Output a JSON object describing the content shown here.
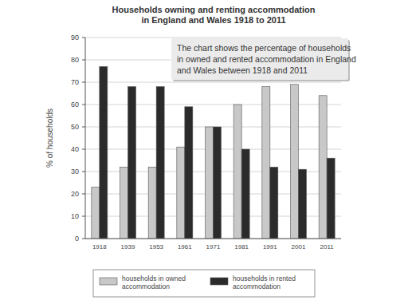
{
  "chart_data": {
    "type": "bar",
    "title": [
      "Households owning and renting accommodation",
      "in England and Wales 1918 to 2011"
    ],
    "annotations": [
      "The chart shows the percentage of households",
      "in owned and rented accommodation in England",
      "and Wales between 1918 and 2011"
    ],
    "y_label": "% of households",
    "categories": [
      "1918",
      "1939",
      "1953",
      "1961",
      "1971",
      "1981",
      "1991",
      "2001",
      "2011"
    ],
    "series": [
      {
        "name": "households in owned accommodation",
        "color": "#c8c8c8",
        "values": [
          23,
          32,
          32,
          41,
          50,
          60,
          68,
          69,
          64
        ]
      },
      {
        "name": "households in rented accommodation",
        "color": "#2b2b2b",
        "values": [
          77,
          68,
          68,
          59,
          50,
          40,
          32,
          31,
          36
        ]
      }
    ],
    "ylim": [
      0,
      90
    ],
    "yticks": [
      0,
      10,
      20,
      30,
      40,
      50,
      60,
      70,
      80,
      90
    ],
    "grid": true,
    "legend": "bottom"
  }
}
